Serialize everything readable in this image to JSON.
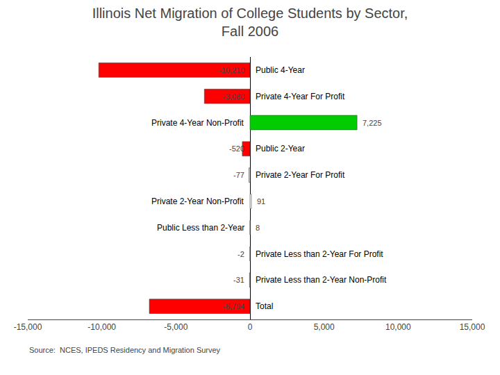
{
  "chart_data": {
    "type": "bar",
    "orientation": "horizontal",
    "title": "Illinois Net Migration of College Students by Sector,\nFall 2006",
    "categories": [
      "Public 4-Year",
      "Private 4-Year For Profit",
      "Private 4-Year Non-Profit",
      "Public 2-Year",
      "Private 2-Year For Profit",
      "Private 2-Year Non-Profit",
      "Public Less than 2-Year",
      "Private Less than 2-Year For Profit",
      "Private Less than 2-Year Non-Profit",
      "Total"
    ],
    "values": [
      -10210,
      -3080,
      7225,
      -520,
      -77,
      91,
      8,
      -2,
      -31,
      -6794
    ],
    "value_labels": [
      "-10,210",
      "-3,080",
      "7,225",
      "-520",
      "-77",
      "91",
      "8",
      "-2",
      "-31",
      "-6,794"
    ],
    "colors": [
      "#ff0000",
      "#ff0000",
      "#00cc00",
      "#ff0000",
      "#ffffff",
      "#ffffff",
      "#ffffff",
      "#ffffff",
      "#ffffff",
      "#ff0000"
    ],
    "xlim": [
      -15000,
      15000
    ],
    "xticks": [
      {
        "value": -15000,
        "label": "-15,000"
      },
      {
        "value": -10000,
        "label": "-10,000"
      },
      {
        "value": -5000,
        "label": "-5,000"
      },
      0,
      {
        "value": 5000,
        "label": "5,000"
      },
      {
        "value": 10000,
        "label": "10,000"
      },
      {
        "value": 15000,
        "label": "15,000"
      }
    ],
    "grid": false,
    "data_labels": true,
    "tick_labels": "x",
    "annotations": [
      "Source:  NCES, IPEDS Residency and Migration Survey"
    ]
  }
}
